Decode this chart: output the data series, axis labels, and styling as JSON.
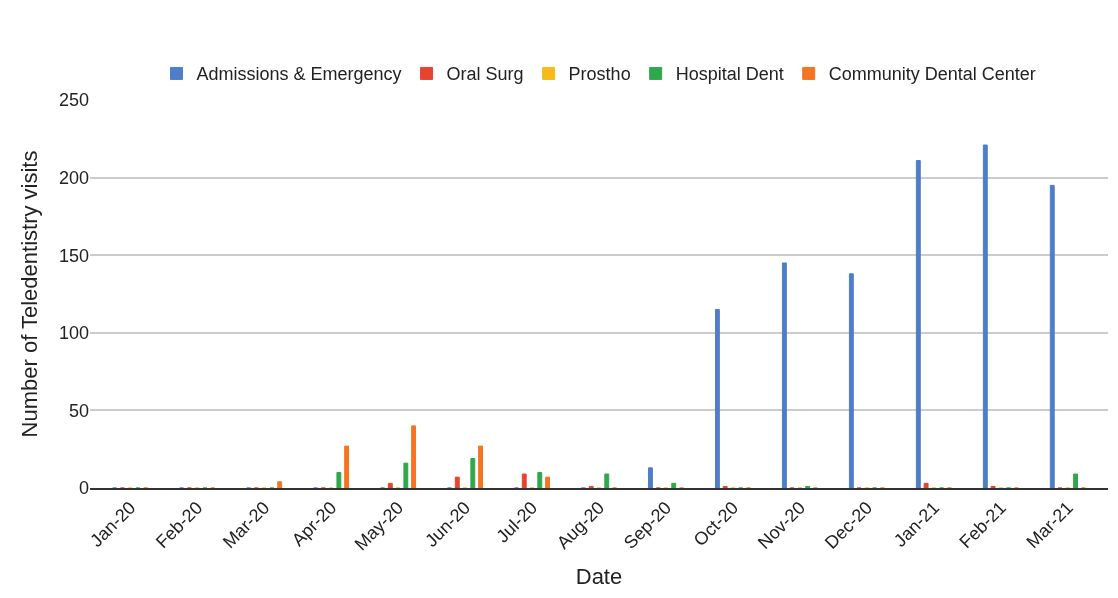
{
  "chart_data": {
    "type": "bar",
    "xlabel": "Date",
    "ylabel": "Number of Teledentistry visits",
    "categories": [
      "Jan-20",
      "Feb-20",
      "Mar-20",
      "Apr-20",
      "May-20",
      "Jun-20",
      "Jul-20",
      "Aug-20",
      "Sep-20",
      "Oct-20",
      "Nov-20",
      "Dec-20",
      "Jan-21",
      "Feb-21",
      "Mar-21"
    ],
    "series": [
      {
        "name": "Admissions & Emergency",
        "color": "#4f7ec8",
        "values": [
          0,
          0,
          0,
          0,
          0,
          0,
          0,
          0,
          13,
          115,
          145,
          138,
          211,
          221,
          195
        ]
      },
      {
        "name": "Oral Surg",
        "color": "#e8432f",
        "values": [
          0,
          0,
          0,
          0,
          3,
          7,
          9,
          1,
          0,
          1,
          0,
          0,
          3,
          1,
          0
        ]
      },
      {
        "name": "Prostho",
        "color": "#f6bb18",
        "values": [
          0,
          0,
          0,
          0,
          0,
          0,
          0,
          0,
          0,
          0,
          0,
          0,
          0,
          0,
          0
        ]
      },
      {
        "name": "Hospital Dent",
        "color": "#2ea84b",
        "values": [
          0,
          0,
          0,
          10,
          16,
          19,
          10,
          9,
          3,
          0,
          1,
          0,
          0,
          0,
          9
        ]
      },
      {
        "name": "Community Dental Center",
        "color": "#f47421",
        "values": [
          0,
          0,
          4,
          27,
          40,
          27,
          7,
          0,
          0,
          0,
          0,
          0,
          0,
          0,
          0
        ]
      }
    ],
    "ylim": [
      0,
      250
    ],
    "yticks": [
      0,
      50,
      100,
      150,
      200,
      250
    ],
    "grid": "y",
    "legend": "top"
  }
}
